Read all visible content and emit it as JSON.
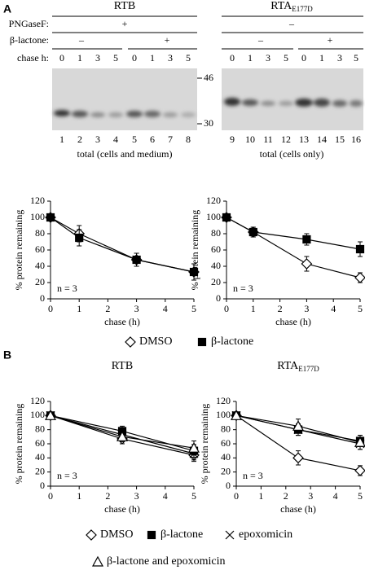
{
  "panels": [
    "A",
    "B"
  ],
  "gel": {
    "pngasef_label": "PNGaseF:",
    "lactone_label": "β-lactone:",
    "chase_label": "chase h:",
    "markers": [
      46,
      30
    ],
    "left": {
      "title": "RTB",
      "pngasef": "+",
      "lactone": [
        "–",
        "+"
      ],
      "chase": [
        0,
        1,
        3,
        5,
        0,
        1,
        3,
        5
      ],
      "lanes": [
        1,
        2,
        3,
        4,
        5,
        6,
        7,
        8
      ],
      "caption": "total (cells and medium)"
    },
    "right": {
      "title": "RTA",
      "title_sub": "E177D",
      "pngasef": "–",
      "lactone": [
        "–",
        "+"
      ],
      "chase": [
        0,
        1,
        3,
        5,
        0,
        1,
        3,
        5
      ],
      "lanes": [
        9,
        10,
        11,
        12,
        13,
        14,
        15,
        16
      ],
      "caption": "total (cells only)"
    }
  },
  "chart_data": [
    {
      "type": "line",
      "ylabel": "% protein remaining",
      "xlabel": "chase (h)",
      "annotation": "n = 3",
      "x": [
        0,
        1,
        3,
        5
      ],
      "xlim": [
        0,
        5
      ],
      "xticks": [
        0,
        1,
        2,
        3,
        4,
        5
      ],
      "ylim": [
        0,
        120
      ],
      "yticks": [
        0,
        20,
        40,
        60,
        80,
        100,
        120
      ],
      "series": [
        {
          "name": "DMSO",
          "color": "#000000",
          "marker": "diamond",
          "values": [
            100,
            80,
            48,
            33
          ],
          "errors": [
            0,
            10,
            8,
            10
          ]
        },
        {
          "name": "β-lactone",
          "color": "#000000",
          "marker": "square",
          "values": [
            100,
            75,
            48,
            33
          ],
          "errors": [
            0,
            10,
            8,
            10
          ]
        }
      ]
    },
    {
      "type": "line",
      "ylabel": "% protein remaining",
      "xlabel": "chase (h)",
      "annotation": "n = 3",
      "x": [
        0,
        1,
        3,
        5
      ],
      "xlim": [
        0,
        5
      ],
      "xticks": [
        0,
        1,
        2,
        3,
        4,
        5
      ],
      "ylim": [
        0,
        120
      ],
      "yticks": [
        0,
        20,
        40,
        60,
        80,
        100,
        120
      ],
      "series": [
        {
          "name": "DMSO",
          "color": "#000000",
          "marker": "diamond",
          "values": [
            100,
            82,
            43,
            26
          ],
          "errors": [
            0,
            6,
            9,
            6
          ]
        },
        {
          "name": "β-lactone",
          "color": "#000000",
          "marker": "square",
          "values": [
            100,
            82,
            73,
            61
          ],
          "errors": [
            0,
            6,
            7,
            9
          ]
        }
      ]
    },
    {
      "type": "line",
      "title": "RTB",
      "ylabel": "% protein remaining",
      "xlabel": "chase (h)",
      "annotation": "n = 3",
      "x": [
        0,
        2.5,
        5
      ],
      "xlim": [
        0,
        5
      ],
      "xticks": [
        0,
        1,
        2,
        3,
        4,
        5
      ],
      "ylim": [
        0,
        120
      ],
      "yticks": [
        0,
        20,
        40,
        60,
        80,
        100,
        120
      ],
      "series": [
        {
          "name": "DMSO",
          "color": "#000000",
          "marker": "diamond",
          "values": [
            100,
            67,
            44
          ],
          "errors": [
            0,
            7,
            9
          ]
        },
        {
          "name": "β-lactone",
          "color": "#000000",
          "marker": "square",
          "values": [
            100,
            78,
            50
          ],
          "errors": [
            0,
            7,
            9
          ]
        },
        {
          "name": "epoxomicin",
          "color": "#000000",
          "marker": "cross",
          "values": [
            100,
            73,
            46
          ],
          "errors": [
            0,
            7,
            9
          ]
        },
        {
          "name": "β-lactone and epoxomicin",
          "color": "#000000",
          "marker": "triangle",
          "values": [
            100,
            70,
            54
          ],
          "errors": [
            0,
            7,
            10
          ]
        }
      ]
    },
    {
      "type": "line",
      "title": "RTA",
      "title_sub": "E177D",
      "ylabel": "% protein remaining",
      "xlabel": "chase (h)",
      "annotation": "n = 3",
      "x": [
        0,
        2.5,
        5
      ],
      "xlim": [
        0,
        5
      ],
      "xticks": [
        0,
        1,
        2,
        3,
        4,
        5
      ],
      "ylim": [
        0,
        120
      ],
      "yticks": [
        0,
        20,
        40,
        60,
        80,
        100,
        120
      ],
      "series": [
        {
          "name": "DMSO",
          "color": "#000000",
          "marker": "diamond",
          "values": [
            100,
            40,
            22
          ],
          "errors": [
            0,
            10,
            7
          ]
        },
        {
          "name": "β-lactone",
          "color": "#000000",
          "marker": "square",
          "values": [
            100,
            80,
            64
          ],
          "errors": [
            0,
            8,
            8
          ]
        },
        {
          "name": "epoxomicin",
          "color": "#000000",
          "marker": "cross",
          "values": [
            100,
            80,
            60
          ],
          "errors": [
            0,
            8,
            8
          ]
        },
        {
          "name": "β-lactone and epoxomicin",
          "color": "#000000",
          "marker": "triangle",
          "values": [
            100,
            85,
            62
          ],
          "errors": [
            0,
            10,
            10
          ]
        }
      ]
    }
  ]
}
